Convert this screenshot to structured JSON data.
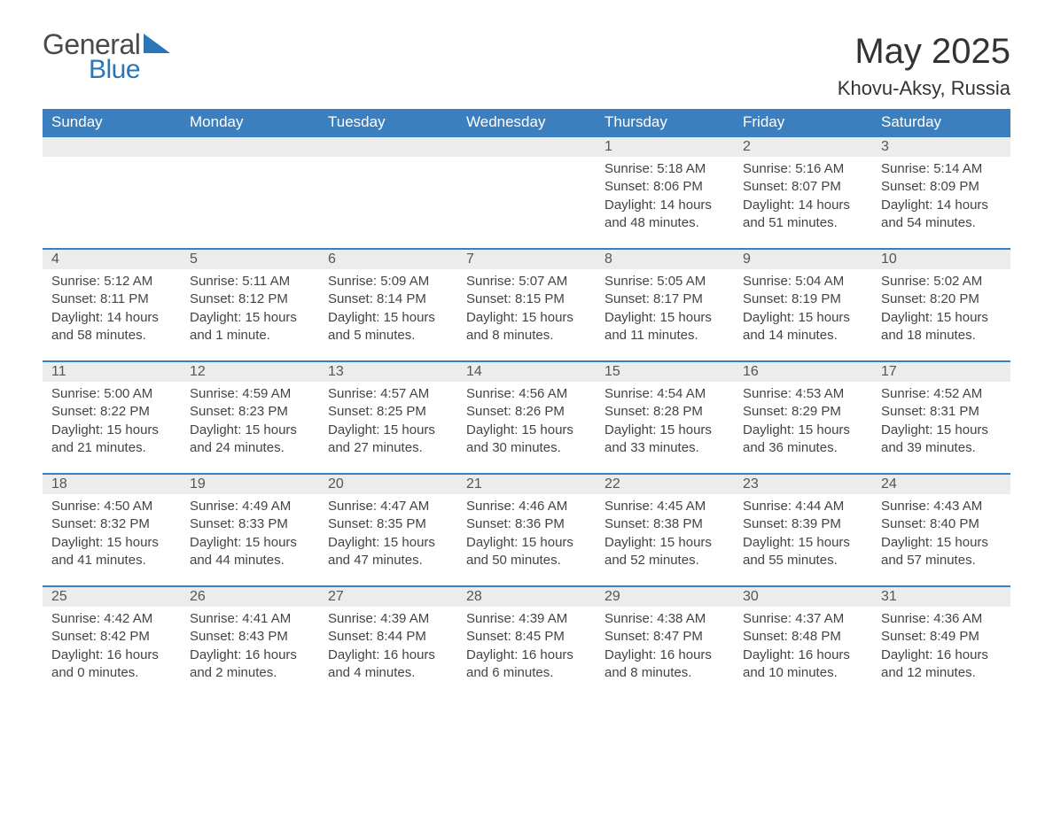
{
  "logo": {
    "word1": "General",
    "word2": "Blue",
    "accent_color": "#2a76b8",
    "text_color": "#4a4a4a"
  },
  "title": "May 2025",
  "location": "Khovu-Aksy, Russia",
  "header_bg": "#3c7fbf",
  "daynum_bg": "#ececec",
  "day_headers": [
    "Sunday",
    "Monday",
    "Tuesday",
    "Wednesday",
    "Thursday",
    "Friday",
    "Saturday"
  ],
  "weeks": [
    {
      "days": [
        null,
        null,
        null,
        null,
        {
          "n": "1",
          "sunrise": "5:18 AM",
          "sunset": "8:06 PM",
          "daylight": "14 hours and 48 minutes."
        },
        {
          "n": "2",
          "sunrise": "5:16 AM",
          "sunset": "8:07 PM",
          "daylight": "14 hours and 51 minutes."
        },
        {
          "n": "3",
          "sunrise": "5:14 AM",
          "sunset": "8:09 PM",
          "daylight": "14 hours and 54 minutes."
        }
      ]
    },
    {
      "days": [
        {
          "n": "4",
          "sunrise": "5:12 AM",
          "sunset": "8:11 PM",
          "daylight": "14 hours and 58 minutes."
        },
        {
          "n": "5",
          "sunrise": "5:11 AM",
          "sunset": "8:12 PM",
          "daylight": "15 hours and 1 minute."
        },
        {
          "n": "6",
          "sunrise": "5:09 AM",
          "sunset": "8:14 PM",
          "daylight": "15 hours and 5 minutes."
        },
        {
          "n": "7",
          "sunrise": "5:07 AM",
          "sunset": "8:15 PM",
          "daylight": "15 hours and 8 minutes."
        },
        {
          "n": "8",
          "sunrise": "5:05 AM",
          "sunset": "8:17 PM",
          "daylight": "15 hours and 11 minutes."
        },
        {
          "n": "9",
          "sunrise": "5:04 AM",
          "sunset": "8:19 PM",
          "daylight": "15 hours and 14 minutes."
        },
        {
          "n": "10",
          "sunrise": "5:02 AM",
          "sunset": "8:20 PM",
          "daylight": "15 hours and 18 minutes."
        }
      ]
    },
    {
      "days": [
        {
          "n": "11",
          "sunrise": "5:00 AM",
          "sunset": "8:22 PM",
          "daylight": "15 hours and 21 minutes."
        },
        {
          "n": "12",
          "sunrise": "4:59 AM",
          "sunset": "8:23 PM",
          "daylight": "15 hours and 24 minutes."
        },
        {
          "n": "13",
          "sunrise": "4:57 AM",
          "sunset": "8:25 PM",
          "daylight": "15 hours and 27 minutes."
        },
        {
          "n": "14",
          "sunrise": "4:56 AM",
          "sunset": "8:26 PM",
          "daylight": "15 hours and 30 minutes."
        },
        {
          "n": "15",
          "sunrise": "4:54 AM",
          "sunset": "8:28 PM",
          "daylight": "15 hours and 33 minutes."
        },
        {
          "n": "16",
          "sunrise": "4:53 AM",
          "sunset": "8:29 PM",
          "daylight": "15 hours and 36 minutes."
        },
        {
          "n": "17",
          "sunrise": "4:52 AM",
          "sunset": "8:31 PM",
          "daylight": "15 hours and 39 minutes."
        }
      ]
    },
    {
      "days": [
        {
          "n": "18",
          "sunrise": "4:50 AM",
          "sunset": "8:32 PM",
          "daylight": "15 hours and 41 minutes."
        },
        {
          "n": "19",
          "sunrise": "4:49 AM",
          "sunset": "8:33 PM",
          "daylight": "15 hours and 44 minutes."
        },
        {
          "n": "20",
          "sunrise": "4:47 AM",
          "sunset": "8:35 PM",
          "daylight": "15 hours and 47 minutes."
        },
        {
          "n": "21",
          "sunrise": "4:46 AM",
          "sunset": "8:36 PM",
          "daylight": "15 hours and 50 minutes."
        },
        {
          "n": "22",
          "sunrise": "4:45 AM",
          "sunset": "8:38 PM",
          "daylight": "15 hours and 52 minutes."
        },
        {
          "n": "23",
          "sunrise": "4:44 AM",
          "sunset": "8:39 PM",
          "daylight": "15 hours and 55 minutes."
        },
        {
          "n": "24",
          "sunrise": "4:43 AM",
          "sunset": "8:40 PM",
          "daylight": "15 hours and 57 minutes."
        }
      ]
    },
    {
      "days": [
        {
          "n": "25",
          "sunrise": "4:42 AM",
          "sunset": "8:42 PM",
          "daylight": "16 hours and 0 minutes."
        },
        {
          "n": "26",
          "sunrise": "4:41 AM",
          "sunset": "8:43 PM",
          "daylight": "16 hours and 2 minutes."
        },
        {
          "n": "27",
          "sunrise": "4:39 AM",
          "sunset": "8:44 PM",
          "daylight": "16 hours and 4 minutes."
        },
        {
          "n": "28",
          "sunrise": "4:39 AM",
          "sunset": "8:45 PM",
          "daylight": "16 hours and 6 minutes."
        },
        {
          "n": "29",
          "sunrise": "4:38 AM",
          "sunset": "8:47 PM",
          "daylight": "16 hours and 8 minutes."
        },
        {
          "n": "30",
          "sunrise": "4:37 AM",
          "sunset": "8:48 PM",
          "daylight": "16 hours and 10 minutes."
        },
        {
          "n": "31",
          "sunrise": "4:36 AM",
          "sunset": "8:49 PM",
          "daylight": "16 hours and 12 minutes."
        }
      ]
    }
  ],
  "labels": {
    "sunrise": "Sunrise:",
    "sunset": "Sunset:",
    "daylight": "Daylight:"
  }
}
